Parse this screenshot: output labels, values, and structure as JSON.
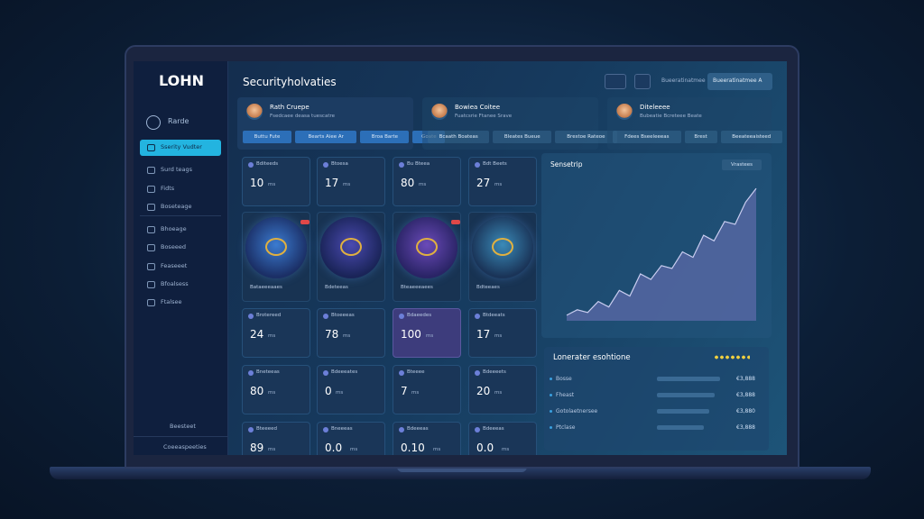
{
  "brand": "LOHN",
  "page_title": "Securityholvaties",
  "sidebar": {
    "user": "Rarde",
    "nav": [
      "Sserity Vudter",
      "Surd teags",
      "Fidts",
      "Boseteage",
      "Bhoeage",
      "Boseeed",
      "Feaseeet",
      "Bfoalsess",
      "Ftalsee"
    ],
    "footer": [
      "Beesteet",
      "Coeeaspeeties"
    ]
  },
  "topbar": {
    "link": "Bueeratinatmee",
    "button": "Bueeratinatmee A"
  },
  "profiles": [
    {
      "name": "Rath Cruepe",
      "subtitle": "Fsedcaee deasa tuescatre",
      "buttons": [
        "Buttu Fute",
        "Bearts Aiee Ar",
        "Broa Barte",
        "Goate"
      ]
    },
    {
      "name": "Bowiea Coitee",
      "subtitle": "Fuatcsrie Ftanee Srave",
      "buttons": [
        "Bcaath Boateas",
        "Bleates Bueue",
        "Brestoe Rateoe"
      ]
    },
    {
      "name": "Diteleeee",
      "subtitle": "Bubeatie Bcreteee Beate",
      "buttons": [
        "Fdees Bseeleeeas",
        "Brest",
        "Beeateeaisteed"
      ]
    }
  ],
  "stat_rows": [
    [
      {
        "label": "Bditeeds",
        "value": "10",
        "unit": "ms"
      },
      {
        "label": "Btoesa",
        "value": "17",
        "unit": "ms"
      },
      {
        "label": "Bu Bteea",
        "value": "80",
        "unit": "ms"
      },
      {
        "label": "Bdt Beets",
        "value": "27",
        "unit": "ms"
      }
    ],
    [
      {
        "label": "Brotereed",
        "value": "24",
        "unit": "ms"
      },
      {
        "label": "Btoeeeas",
        "value": "78",
        "unit": "ms"
      },
      {
        "label": "Bdaeedes",
        "value": "100",
        "unit": "ms"
      },
      {
        "label": "Btdeeats",
        "value": "17",
        "unit": "ms"
      }
    ],
    [
      {
        "label": "Bneteeas",
        "value": "80",
        "unit": "ms"
      },
      {
        "label": "Bdeeeates",
        "value": "0",
        "unit": "ms"
      },
      {
        "label": "Bteeee",
        "value": "7",
        "unit": "ms"
      },
      {
        "label": "Bdeeeets",
        "value": "20",
        "unit": "ms"
      }
    ],
    [
      {
        "label": "Bteeeed",
        "value": "89",
        "unit": "ms"
      },
      {
        "label": "Bneeeas",
        "value": "0.0",
        "unit": "ms"
      },
      {
        "label": "Bdeeeas",
        "value": "0.10",
        "unit": "ms"
      },
      {
        "label": "Bdeeeas",
        "value": "0.0",
        "unit": "ms"
      }
    ]
  ],
  "media_cards": [
    {
      "caption": "Bataeeeaaes"
    },
    {
      "caption": "Bdeteeas"
    },
    {
      "caption": "Bteaeeeaees"
    },
    {
      "caption": "Bdteeaes"
    }
  ],
  "trend_panel": {
    "title": "Sensetrip",
    "badge": "Vrastees",
    "values": [
      4,
      8,
      6,
      14,
      10,
      22,
      18,
      34,
      30,
      40,
      38,
      50,
      46,
      62,
      58,
      72,
      70,
      86,
      96
    ],
    "ylim": [
      0,
      100
    ]
  },
  "list_panel": {
    "title": "Lonerater esohtione",
    "items": [
      {
        "label": "Bosse",
        "value": "€3,888"
      },
      {
        "label": "Fheast",
        "value": "€3,888"
      },
      {
        "label": "Gotolaetnersee",
        "value": "€3,880"
      },
      {
        "label": "Ptclase",
        "value": "€3,888"
      }
    ]
  }
}
